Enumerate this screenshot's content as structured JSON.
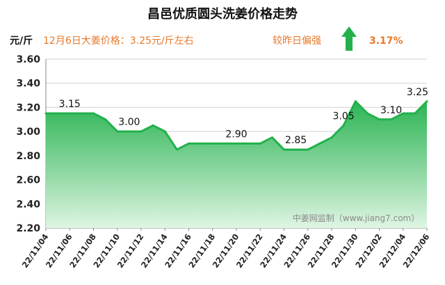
{
  "header": {
    "title": "昌邑优质圆头洗姜价格走势",
    "unit": "元/斤",
    "price_note": "12月6日大姜价格：3.25元/斤左右",
    "compare_label": "较昨日偏强",
    "change_pct": "3.17%",
    "trend_icon": "up-arrow-icon"
  },
  "watermark": "中姜网监制（www.jiang7.com）",
  "colors": {
    "line": "#22b14c",
    "fill_top": "#22b14c",
    "fill_bottom": "#dff5e3",
    "accent_text": "#e8792a",
    "arrow": "#22b14c",
    "grid": "#d0d0d0"
  },
  "chart_data": {
    "type": "area",
    "title": "昌邑优质圆头洗姜价格走势",
    "ylabel": "元/斤",
    "xlabel": "",
    "ylim": [
      2.2,
      3.6
    ],
    "yticks": [
      "2.20",
      "2.40",
      "2.60",
      "2.80",
      "3.00",
      "3.20",
      "3.40",
      "3.60"
    ],
    "grid": "horizontal",
    "x": [
      "22/11/04",
      "22/11/05",
      "22/11/06",
      "22/11/07",
      "22/11/08",
      "22/11/09",
      "22/11/10",
      "22/11/11",
      "22/11/12",
      "22/11/13",
      "22/11/14",
      "22/11/15",
      "22/11/16",
      "22/11/17",
      "22/11/18",
      "22/11/19",
      "22/11/20",
      "22/11/21",
      "22/11/22",
      "22/11/23",
      "22/11/24",
      "22/11/25",
      "22/11/26",
      "22/11/27",
      "22/11/28",
      "22/11/29",
      "22/11/30",
      "22/12/01",
      "22/12/02",
      "22/12/03",
      "22/12/04",
      "22/12/05",
      "22/12/06"
    ],
    "values": [
      3.15,
      3.15,
      3.15,
      3.15,
      3.15,
      3.1,
      3.0,
      3.0,
      3.0,
      3.05,
      3.0,
      2.85,
      2.9,
      2.9,
      2.9,
      2.9,
      2.9,
      2.9,
      2.9,
      2.95,
      2.85,
      2.85,
      2.85,
      2.9,
      2.95,
      3.05,
      3.25,
      3.15,
      3.1,
      3.1,
      3.15,
      3.15,
      3.25
    ],
    "xtick_labels": [
      "22/11/04",
      "22/11/06",
      "22/11/08",
      "22/11/10",
      "22/11/12",
      "22/11/14",
      "22/11/16",
      "22/11/18",
      "22/11/20",
      "22/11/22",
      "22/11/24",
      "22/11/26",
      "22/11/28",
      "22/11/30",
      "22/12/02",
      "22/12/04",
      "22/12/06"
    ],
    "data_labels": [
      {
        "x": "22/11/06",
        "text": "3.15"
      },
      {
        "x": "22/11/11",
        "text": "3.00"
      },
      {
        "x": "22/11/20",
        "text": "2.90"
      },
      {
        "x": "22/11/25",
        "text": "2.85"
      },
      {
        "x": "22/11/29",
        "text": "3.05"
      },
      {
        "x": "22/12/03",
        "text": "3.10"
      },
      {
        "x": "22/12/06",
        "text": "3.25"
      }
    ]
  }
}
